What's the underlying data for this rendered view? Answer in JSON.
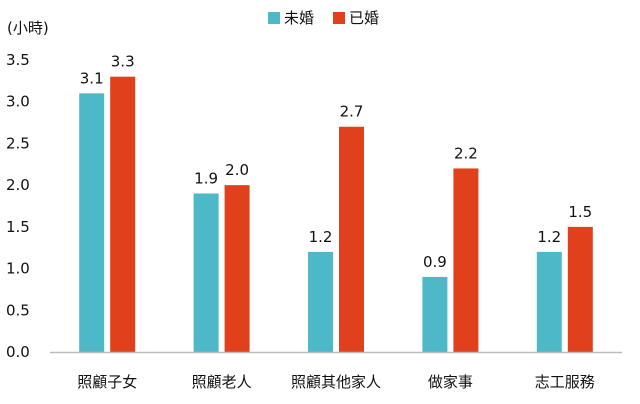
{
  "colors": {
    "unmarried": "#4db8c8",
    "married": "#e0401c",
    "axis": "#bbbbbb"
  },
  "chart_data": {
    "type": "bar",
    "title": "",
    "xlabel": "",
    "ylabel": "(小時)",
    "ylim": [
      0,
      3.5
    ],
    "yticks": [
      "0.0",
      "0.5",
      "1.0",
      "1.5",
      "2.0",
      "2.5",
      "3.0",
      "3.5"
    ],
    "grid": false,
    "legend_position": "top-center",
    "categories": [
      "照顧子女",
      "照顧老人",
      "照顧其他家人",
      "做家事",
      "志工服務"
    ],
    "series": [
      {
        "name": "未婚",
        "values": [
          3.1,
          1.9,
          1.2,
          0.9,
          1.2
        ],
        "labels": [
          "3.1",
          "1.9",
          "1.2",
          "0.9",
          "1.2"
        ]
      },
      {
        "name": "已婚",
        "values": [
          3.3,
          2.0,
          2.7,
          2.2,
          1.5
        ],
        "labels": [
          "3.3",
          "2.0",
          "2.7",
          "2.2",
          "1.5"
        ]
      }
    ]
  }
}
